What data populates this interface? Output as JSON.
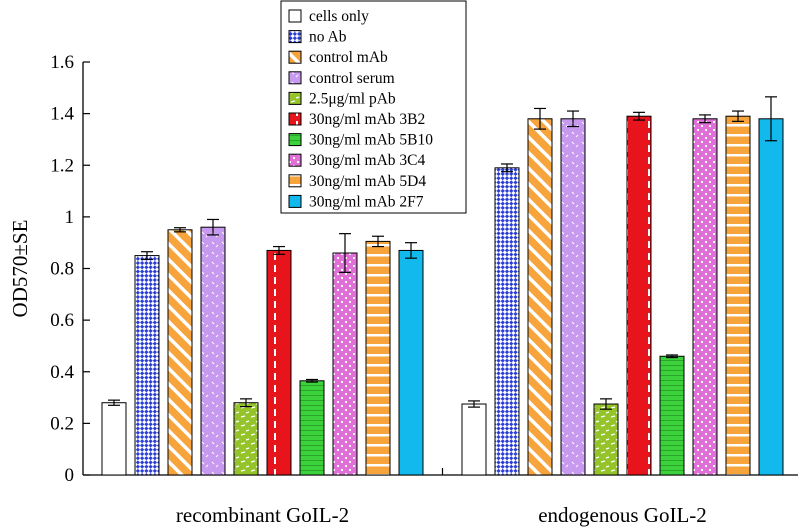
{
  "chart_data": {
    "type": "bar",
    "ylabel": "OD570±SE",
    "ylim": [
      0,
      1.6
    ],
    "yticks": [
      0,
      0.2,
      0.4,
      0.6,
      0.8,
      1,
      1.2,
      1.4,
      1.6
    ],
    "ytick_labels": [
      "0",
      "0.2",
      "0.4",
      "0.6",
      "0.8",
      "1",
      "1.2",
      "1.4",
      "1.6"
    ],
    "grid": false,
    "legend_position": "top-center",
    "categories": [
      "recombinant GoIL-2",
      "endogenous GoIL-2"
    ],
    "series": [
      {
        "name": "cells only",
        "color": "#ffffff",
        "pattern": "solid",
        "values": [
          0.28,
          0.275
        ],
        "errors": [
          0.01,
          0.012
        ]
      },
      {
        "name": "no Ab",
        "color": "#2b3fd6",
        "pattern": "checker",
        "values": [
          0.85,
          1.19
        ],
        "errors": [
          0.015,
          0.015
        ]
      },
      {
        "name": "control mAb",
        "color": "#f7a43c",
        "pattern": "diagonal",
        "values": [
          0.95,
          1.38
        ],
        "errors": [
          0.008,
          0.04
        ]
      },
      {
        "name": "control serum",
        "color": "#c79af0",
        "pattern": "dots",
        "values": [
          0.96,
          1.38
        ],
        "errors": [
          0.03,
          0.03
        ]
      },
      {
        "name": "2.5μg/ml pAb",
        "color": "#94c42a",
        "pattern": "dashes",
        "values": [
          0.28,
          0.275
        ],
        "errors": [
          0.015,
          0.02
        ]
      },
      {
        "name": "30ng/ml mAb 3B2",
        "color": "#e8141c",
        "pattern": "vertical-dashes",
        "values": [
          0.87,
          1.39
        ],
        "errors": [
          0.015,
          0.015
        ]
      },
      {
        "name": "30ng/ml mAb 5B10",
        "color": "#3cd23c",
        "pattern": "horizontal-lines",
        "values": [
          0.365,
          0.46
        ],
        "errors": [
          0.005,
          0.005
        ]
      },
      {
        "name": "30ng/ml mAb 3C4",
        "color": "#e070d8",
        "pattern": "plaid",
        "values": [
          0.86,
          1.38
        ],
        "errors": [
          0.075,
          0.015
        ]
      },
      {
        "name": "30ng/ml mAb 5D4",
        "color": "#f7a43c",
        "pattern": "horizontal-stripes",
        "values": [
          0.905,
          1.39
        ],
        "errors": [
          0.02,
          0.02
        ]
      },
      {
        "name": "30ng/ml mAb 2F7",
        "color": "#12b9ec",
        "pattern": "solid",
        "values": [
          0.87,
          1.38
        ],
        "errors": [
          0.03,
          0.085
        ]
      }
    ]
  }
}
